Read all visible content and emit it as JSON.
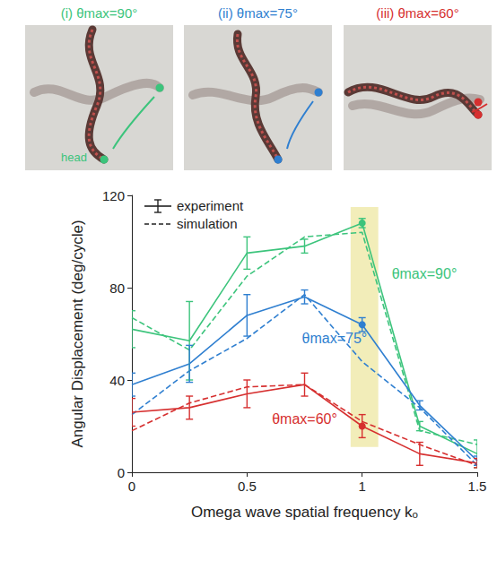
{
  "panels": [
    {
      "title": "(i) θmax=90°",
      "color": "#3cc47c",
      "label": "head"
    },
    {
      "title": "(ii) θmax=75°",
      "color": "#2f7fd0"
    },
    {
      "title": "(iii) θmax=60°",
      "color": "#d62f2f"
    }
  ],
  "chart_data": {
    "type": "line",
    "x_label": "Omega wave spatial frequency kₒ",
    "y_label": "Angular Displacement (deg/cycle)",
    "xlim": [
      0,
      1.5
    ],
    "xticks": [
      0,
      0.5,
      1,
      1.5
    ],
    "ylim": [
      0,
      120
    ],
    "yticks": [
      0,
      40,
      80,
      120
    ],
    "grid": false,
    "legend": "upper left",
    "x": [
      0,
      0.25,
      0.5,
      0.75,
      1,
      1.25,
      1.5
    ],
    "series": [
      {
        "name": "experiment",
        "color": "#3cc47c",
        "line_style": "solid",
        "marker": "circle",
        "values": [
          62,
          57,
          95,
          98,
          108,
          20,
          8
        ],
        "errors": [
          8,
          17,
          7,
          3,
          2,
          2,
          6
        ]
      },
      {
        "name": "simulation",
        "color": "#3cc47c",
        "line_style": "dashed",
        "values": [
          67,
          53,
          85,
          102,
          104,
          18,
          12
        ]
      },
      {
        "name": "experiment",
        "color": "#2f7fd0",
        "line_style": "solid",
        "marker": "circle",
        "values": [
          38,
          47,
          68,
          76,
          64,
          29,
          5
        ],
        "errors": [
          5,
          8,
          9,
          3,
          3,
          2,
          2
        ]
      },
      {
        "name": "simulation",
        "color": "#2f7fd0",
        "line_style": "dashed",
        "values": [
          25,
          44,
          58,
          77,
          48,
          28,
          3
        ]
      },
      {
        "name": "experiment",
        "color": "#d62f2f",
        "line_style": "solid",
        "marker": "circle",
        "values": [
          26,
          28,
          34,
          38,
          20,
          8,
          4
        ],
        "errors": [
          6,
          5,
          6,
          5,
          5,
          5,
          2
        ]
      },
      {
        "name": "simulation",
        "color": "#d62f2f",
        "line_style": "dashed",
        "values": [
          18,
          30,
          37,
          38,
          22,
          12,
          3
        ]
      }
    ],
    "annotations": [
      {
        "text": "θmax=90°",
        "x": 1.27,
        "y": 86,
        "color": "#3cc47c"
      },
      {
        "text": "θmax=75°",
        "x": 0.88,
        "y": 58,
        "color": "#2f7fd0"
      },
      {
        "text": "θmax=60°",
        "x": 0.75,
        "y": 23,
        "color": "#d62f2f"
      }
    ],
    "highlight": {
      "x": [
        0.95,
        1.07
      ],
      "y": [
        11,
        115
      ],
      "color": "#efe9a8"
    }
  }
}
